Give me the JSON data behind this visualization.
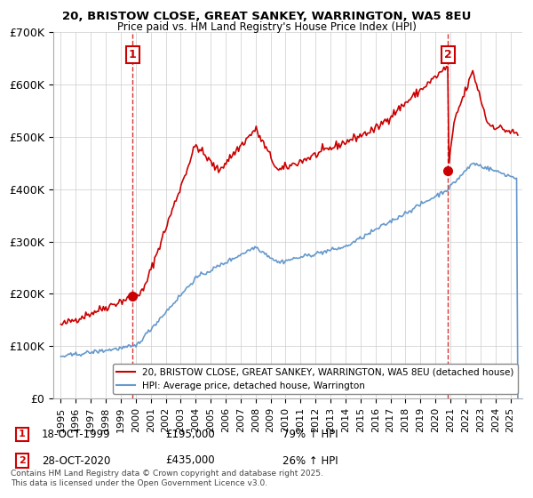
{
  "title1": "20, BRISTOW CLOSE, GREAT SANKEY, WARRINGTON, WA5 8EU",
  "title2": "Price paid vs. HM Land Registry's House Price Index (HPI)",
  "ylim": [
    0,
    700000
  ],
  "yticks": [
    0,
    100000,
    200000,
    300000,
    400000,
    500000,
    600000,
    700000
  ],
  "ytick_labels": [
    "£0",
    "£100K",
    "£200K",
    "£300K",
    "£400K",
    "£500K",
    "£600K",
    "£700K"
  ],
  "point1": {
    "date_idx": 1999.8,
    "price": 195000,
    "label": "1",
    "date_str": "18-OCT-1999",
    "pct": "79% ↑ HPI"
  },
  "point2": {
    "date_idx": 2020.83,
    "price": 435000,
    "label": "2",
    "date_str": "28-OCT-2020",
    "pct": "26% ↑ HPI"
  },
  "legend1": "20, BRISTOW CLOSE, GREAT SANKEY, WARRINGTON, WA5 8EU (detached house)",
  "legend2": "HPI: Average price, detached house, Warrington",
  "footer": "Contains HM Land Registry data © Crown copyright and database right 2025.\nThis data is licensed under the Open Government Licence v3.0.",
  "red_color": "#cc0000",
  "blue_color": "#6699cc",
  "grid_color": "#cccccc",
  "background_color": "#ffffff",
  "xlim_left": 1994.5,
  "xlim_right": 2025.8
}
